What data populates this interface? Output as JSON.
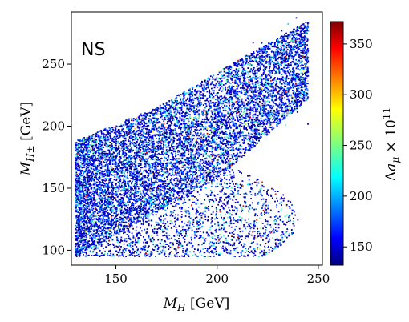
{
  "chart_data": {
    "type": "scatter",
    "title": "",
    "panel_label": "NS",
    "xlabel": "M_H [GeV]",
    "ylabel": "M_{H±} [GeV]",
    "xlim": [
      128,
      252
    ],
    "ylim": [
      88,
      292
    ],
    "xticks": [
      150,
      200,
      250
    ],
    "yticks": [
      100,
      150,
      200,
      250
    ],
    "grid": false,
    "legend": "none",
    "colorbar": {
      "label": "Δa_μ × 10^11",
      "colormap": "jet",
      "range": [
        132,
        372
      ],
      "ticks": [
        150,
        200,
        250,
        300,
        350
      ]
    },
    "regions": {
      "upper_band": {
        "x": [
          130,
          245
        ],
        "y_lower_edge": [
          [
            130,
            95
          ],
          [
            200,
            157
          ],
          [
            245,
            222
          ]
        ],
        "y_upper_edge": [
          [
            130,
            188
          ],
          [
            170,
            215
          ],
          [
            220,
            262
          ],
          [
            245,
            285
          ]
        ]
      },
      "lower_lobe": {
        "x": [
          130,
          240
        ],
        "y_range": [
          95,
          165
        ]
      }
    },
    "color_mix": [
      {
        "value_range": [
          132,
          165
        ],
        "share": 0.64
      },
      {
        "value_range": [
          165,
          200
        ],
        "share": 0.21
      },
      {
        "value_range": [
          200,
          250
        ],
        "share": 0.12
      },
      {
        "value_range": [
          250,
          372
        ],
        "share": 0.03
      }
    ]
  }
}
